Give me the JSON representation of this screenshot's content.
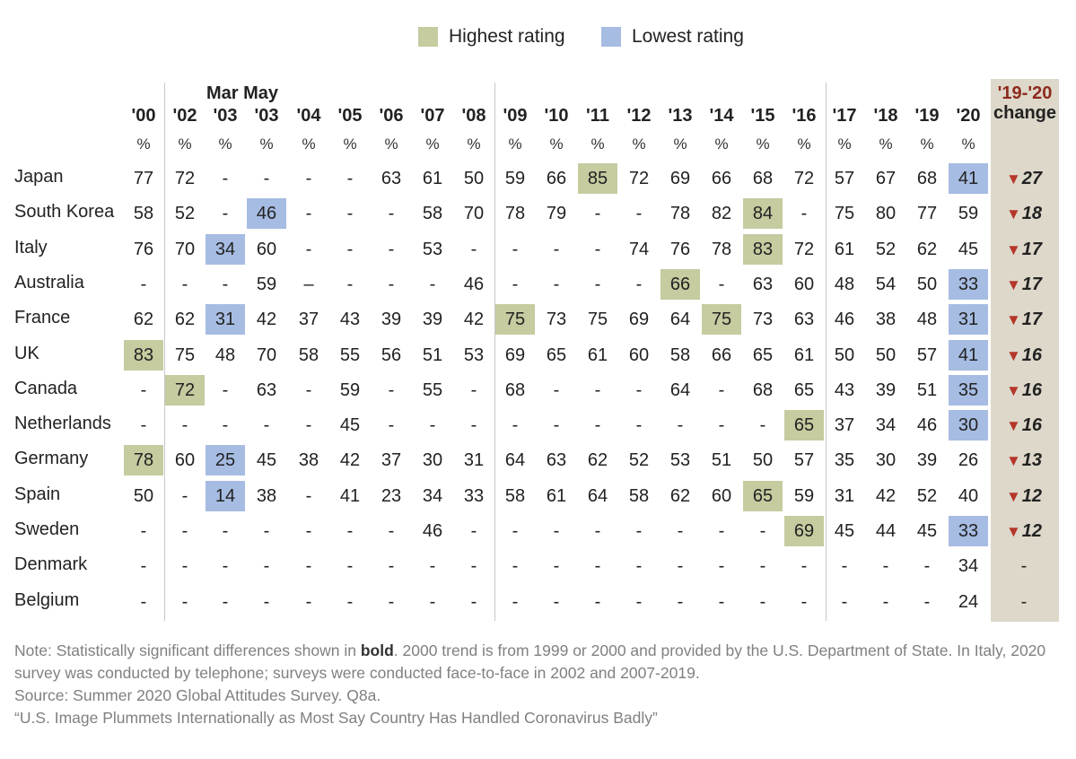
{
  "legend": {
    "highest": {
      "label": "Highest rating",
      "color": "#c6cba0"
    },
    "lowest": {
      "label": "Lowest rating",
      "color": "#a6bce2"
    }
  },
  "header": {
    "mar_may": "Mar May",
    "change_line1": "'19-'20",
    "change_line2": "change",
    "pct_symbol": "%"
  },
  "chart_data": {
    "type": "table",
    "years": [
      "'00",
      "'02",
      "'03",
      "'03",
      "'04",
      "'05",
      "'06",
      "'07",
      "'08",
      "'09",
      "'10",
      "'11",
      "'12",
      "'13",
      "'14",
      "'15",
      "'16",
      "'17",
      "'18",
      "'19",
      "'20"
    ],
    "rows": [
      {
        "country": "Japan",
        "values": [
          "77",
          "72",
          "-",
          "-",
          "-",
          "-",
          "63",
          "61",
          "50",
          "59",
          "66",
          "85",
          "72",
          "69",
          "66",
          "68",
          "72",
          "57",
          "67",
          "68",
          "41"
        ],
        "highlight": {
          "11": "high",
          "20": "low"
        },
        "change": "27",
        "change_dir": "down"
      },
      {
        "country": "South Korea",
        "values": [
          "58",
          "52",
          "-",
          "46",
          "-",
          "-",
          "-",
          "58",
          "70",
          "78",
          "79",
          "-",
          "-",
          "78",
          "82",
          "84",
          "-",
          "75",
          "80",
          "77",
          "59"
        ],
        "highlight": {
          "3": "low",
          "15": "high"
        },
        "change": "18",
        "change_dir": "down"
      },
      {
        "country": "Italy",
        "values": [
          "76",
          "70",
          "34",
          "60",
          "-",
          "-",
          "-",
          "53",
          "-",
          "-",
          "-",
          "-",
          "74",
          "76",
          "78",
          "83",
          "72",
          "61",
          "52",
          "62",
          "45"
        ],
        "highlight": {
          "2": "low",
          "15": "high"
        },
        "change": "17",
        "change_dir": "down"
      },
      {
        "country": "Australia",
        "values": [
          "-",
          "-",
          "-",
          "59",
          "–",
          "-",
          "-",
          "-",
          "46",
          "-",
          "-",
          "-",
          "-",
          "66",
          "-",
          "63",
          "60",
          "48",
          "54",
          "50",
          "33"
        ],
        "highlight": {
          "13": "high",
          "20": "low"
        },
        "change": "17",
        "change_dir": "down"
      },
      {
        "country": "France",
        "values": [
          "62",
          "62",
          "31",
          "42",
          "37",
          "43",
          "39",
          "39",
          "42",
          "75",
          "73",
          "75",
          "69",
          "64",
          "75",
          "73",
          "63",
          "46",
          "38",
          "48",
          "31"
        ],
        "highlight": {
          "2": "low",
          "9": "high",
          "14": "high",
          "20": "low"
        },
        "change": "17",
        "change_dir": "down"
      },
      {
        "country": "UK",
        "values": [
          "83",
          "75",
          "48",
          "70",
          "58",
          "55",
          "56",
          "51",
          "53",
          "69",
          "65",
          "61",
          "60",
          "58",
          "66",
          "65",
          "61",
          "50",
          "50",
          "57",
          "41"
        ],
        "highlight": {
          "0": "high",
          "20": "low"
        },
        "change": "16",
        "change_dir": "down"
      },
      {
        "country": "Canada",
        "values": [
          "-",
          "72",
          "-",
          "63",
          "-",
          "59",
          "-",
          "55",
          "-",
          "68",
          "-",
          "-",
          "-",
          "64",
          "-",
          "68",
          "65",
          "43",
          "39",
          "51",
          "35"
        ],
        "highlight": {
          "1": "high",
          "20": "low"
        },
        "change": "16",
        "change_dir": "down"
      },
      {
        "country": "Netherlands",
        "values": [
          "-",
          "-",
          "-",
          "-",
          "-",
          "45",
          "-",
          "-",
          "-",
          "-",
          "-",
          "-",
          "-",
          "-",
          "-",
          "-",
          "65",
          "37",
          "34",
          "46",
          "30"
        ],
        "highlight": {
          "16": "high",
          "20": "low"
        },
        "change": "16",
        "change_dir": "down"
      },
      {
        "country": "Germany",
        "values": [
          "78",
          "60",
          "25",
          "45",
          "38",
          "42",
          "37",
          "30",
          "31",
          "64",
          "63",
          "62",
          "52",
          "53",
          "51",
          "50",
          "57",
          "35",
          "30",
          "39",
          "26"
        ],
        "highlight": {
          "0": "high",
          "2": "low"
        },
        "change": "13",
        "change_dir": "down"
      },
      {
        "country": "Spain",
        "values": [
          "50",
          "-",
          "14",
          "38",
          "-",
          "41",
          "23",
          "34",
          "33",
          "58",
          "61",
          "64",
          "58",
          "62",
          "60",
          "65",
          "59",
          "31",
          "42",
          "52",
          "40"
        ],
        "highlight": {
          "2": "low",
          "15": "high"
        },
        "change": "12",
        "change_dir": "down"
      },
      {
        "country": "Sweden",
        "values": [
          "-",
          "-",
          "-",
          "-",
          "-",
          "-",
          "-",
          "46",
          "-",
          "-",
          "-",
          "-",
          "-",
          "-",
          "-",
          "-",
          "69",
          "45",
          "44",
          "45",
          "33"
        ],
        "highlight": {
          "16": "high",
          "20": "low"
        },
        "change": "12",
        "change_dir": "down"
      },
      {
        "country": "Denmark",
        "values": [
          "-",
          "-",
          "-",
          "-",
          "-",
          "-",
          "-",
          "-",
          "-",
          "-",
          "-",
          "-",
          "-",
          "-",
          "-",
          "-",
          "-",
          "-",
          "-",
          "-",
          "34"
        ],
        "highlight": {},
        "change": "-",
        "change_dir": "none"
      },
      {
        "country": "Belgium",
        "values": [
          "-",
          "-",
          "-",
          "-",
          "-",
          "-",
          "-",
          "-",
          "-",
          "-",
          "-",
          "-",
          "-",
          "-",
          "-",
          "-",
          "-",
          "-",
          "-",
          "-",
          "24"
        ],
        "highlight": {},
        "change": "-",
        "change_dir": "none"
      }
    ]
  },
  "notes": {
    "note_prefix": "Note: Statistically significant differences shown in ",
    "note_bold": "bold",
    "note_rest": ". 2000 trend is from 1999 or 2000 and provided by the U.S. Department of State. In Italy, 2020 survey was conducted by telephone; surveys were conducted face-to-face in 2002 and 2007-2019.",
    "source": "Source: Summer 2020 Global Attitudes Survey. Q8a.",
    "report_title": "“U.S. Image Plummets Internationally as Most Say Country Has Handled Coronavirus Badly”"
  }
}
